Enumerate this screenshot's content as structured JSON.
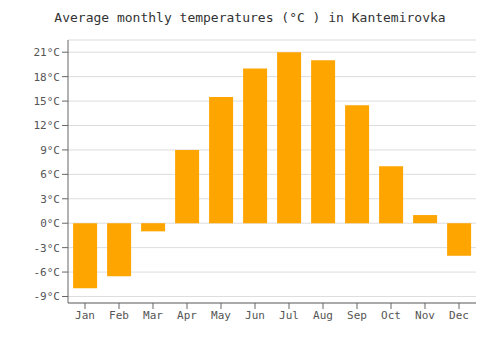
{
  "chart_data": {
    "type": "bar",
    "title": "Average monthly temperatures (°C ) in Kantemirovka",
    "categories": [
      "Jan",
      "Feb",
      "Mar",
      "Apr",
      "May",
      "Jun",
      "Jul",
      "Aug",
      "Sep",
      "Oct",
      "Nov",
      "Dec"
    ],
    "values": [
      -8,
      -6.5,
      -1,
      9,
      15.5,
      19,
      21,
      20,
      14.5,
      7,
      1,
      -4
    ],
    "color": "#FFA500",
    "ylim": [
      -9.8,
      22.5
    ],
    "yticks": [
      {
        "value": -9,
        "label": "-9°C"
      },
      {
        "value": -6,
        "label": "-6°C"
      },
      {
        "value": -3,
        "label": "-3°C"
      },
      {
        "value": 0,
        "label": "0°C"
      },
      {
        "value": 3,
        "label": "3°C"
      },
      {
        "value": 6,
        "label": "6°C"
      },
      {
        "value": 9,
        "label": "9°C"
      },
      {
        "value": 12,
        "label": "12°C"
      },
      {
        "value": 15,
        "label": "15°C"
      },
      {
        "value": 18,
        "label": "18°C"
      },
      {
        "value": 21,
        "label": "21°C"
      }
    ],
    "grid": true
  }
}
